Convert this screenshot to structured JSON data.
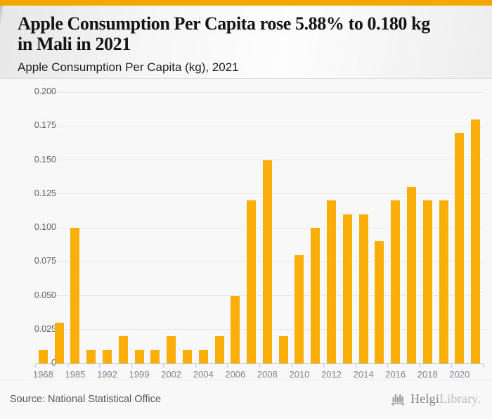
{
  "accent_bar_color": "#F3A704",
  "header": {
    "title_line1": "Apple Consumption Per Capita rose 5.88% to 0.180 kg",
    "title_line2": "in Mali in 2021",
    "subtitle": "Apple Consumption Per Capita (kg), 2021"
  },
  "chart_data": {
    "type": "bar",
    "title": "Apple Consumption Per Capita (kg), 2021",
    "unit": "kg",
    "bar_color": "#FAAE0A",
    "grid": true,
    "legend": "none",
    "ylim": [
      0,
      0.2
    ],
    "ytick_labels": [
      "0.200",
      "0.175",
      "0.150",
      "0.125",
      "0.100",
      "0.075",
      "0.050",
      "0.025",
      "0"
    ],
    "x_tick_labels": [
      "1968",
      "1985",
      "1992",
      "1999",
      "2002",
      "2004",
      "2006",
      "2008",
      "2010",
      "2012",
      "2014",
      "2016",
      "2018",
      "2020"
    ],
    "x_label_every_n_bars": 2,
    "x_label_bar_indexes": [
      0,
      2,
      4,
      6,
      8,
      10,
      12,
      14,
      16,
      18,
      20,
      22,
      24,
      26
    ],
    "values": [
      0.01,
      0.03,
      0.1,
      0.01,
      0.01,
      0.02,
      0.01,
      0.01,
      0.02,
      0.01,
      0.01,
      0.02,
      0.05,
      0.12,
      0.15,
      0.02,
      0.08,
      0.1,
      0.12,
      0.11,
      0.11,
      0.09,
      0.12,
      0.13,
      0.12,
      0.12,
      0.17,
      0.18
    ],
    "highlight_last_value": "0.180",
    "highlight_change_pct": "5.88%"
  },
  "footer": {
    "source": "Source: National Statistical Office",
    "brand": {
      "primary": "Helgi",
      "secondary": "Library.",
      "icon": "bar-chart-logo-icon"
    }
  }
}
